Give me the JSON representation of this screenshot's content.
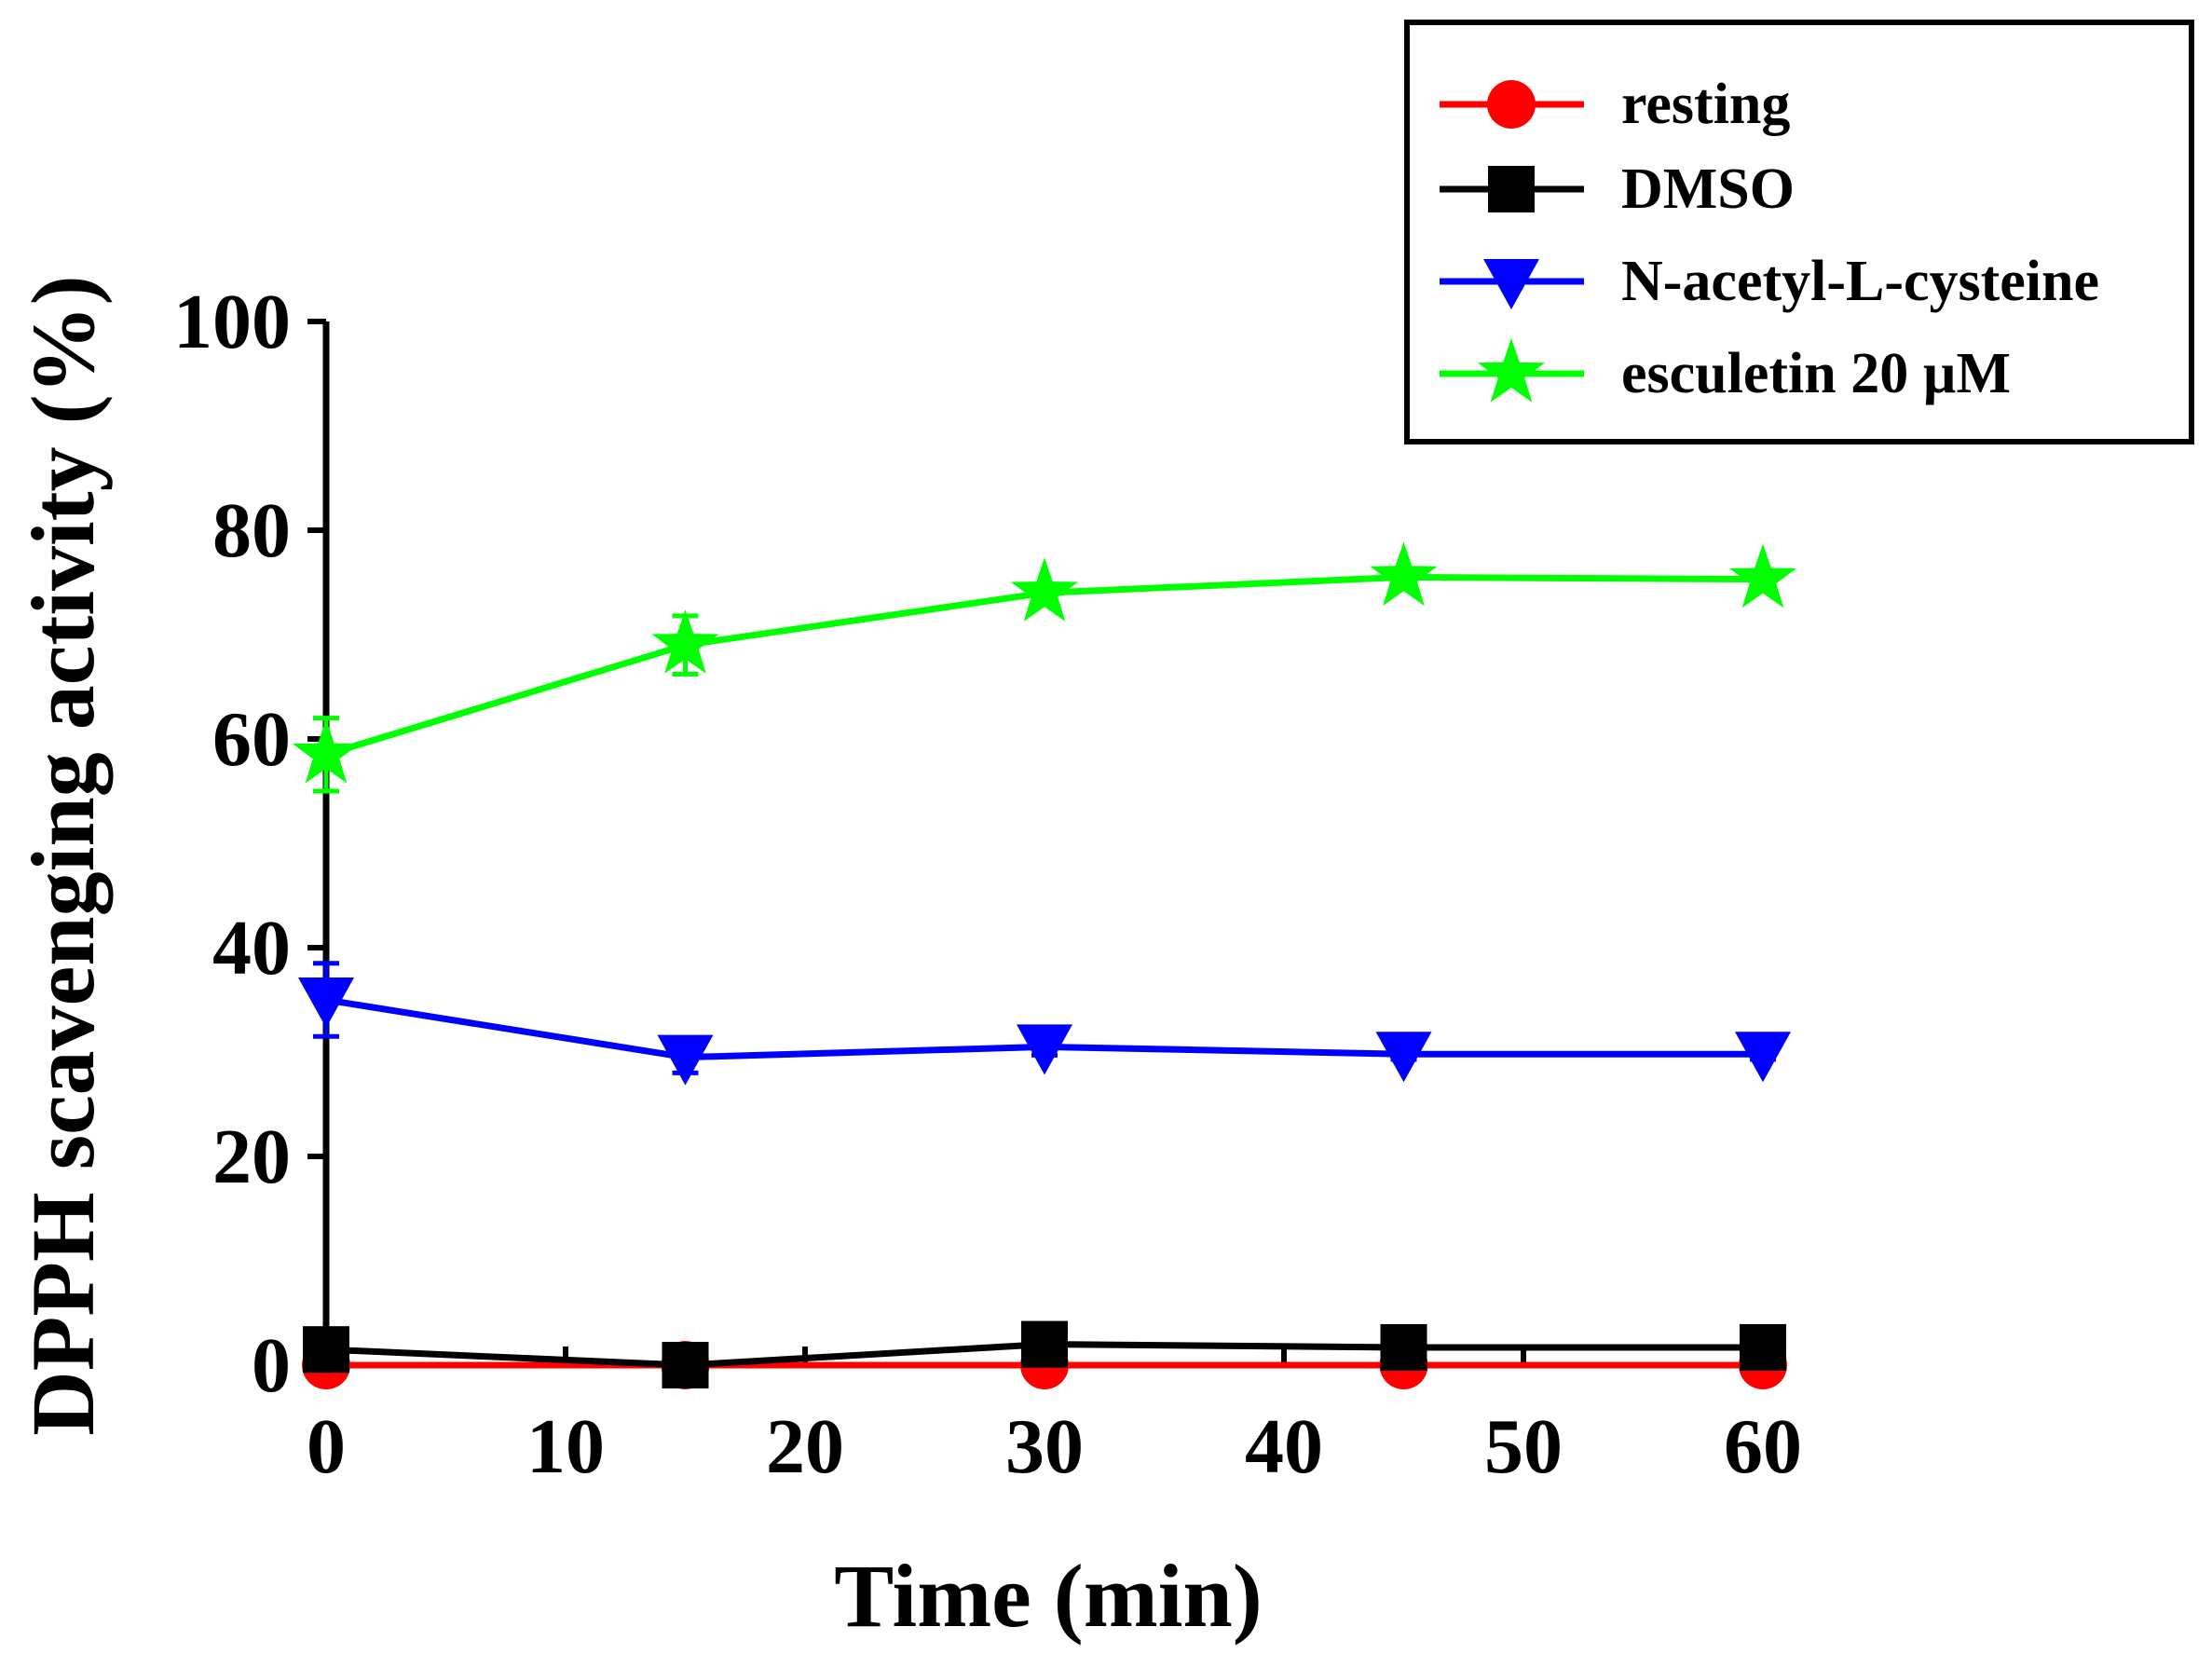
{
  "chart_data": {
    "type": "line",
    "title": "",
    "xlabel": "Time (min)",
    "ylabel": "DPPH scavenging activity (%)",
    "xlim": [
      0,
      60
    ],
    "ylim": [
      0,
      100
    ],
    "xticks": [
      0,
      10,
      20,
      30,
      40,
      50,
      60
    ],
    "yticks": [
      0,
      20,
      40,
      60,
      80,
      100
    ],
    "grid": false,
    "legend_position": "top-right",
    "x": [
      0,
      15,
      30,
      45,
      60
    ],
    "series": [
      {
        "name": "resting",
        "color": "#ff0000",
        "marker": "circle",
        "values": [
          0,
          0,
          0,
          0,
          0
        ],
        "errors": [
          0,
          0,
          0,
          0,
          0
        ]
      },
      {
        "name": "DMSO",
        "color": "#000000",
        "marker": "square",
        "values": [
          1.5,
          0,
          2,
          1.7,
          1.7
        ],
        "errors": [
          0.3,
          0.3,
          0.3,
          0.3,
          0.3
        ]
      },
      {
        "name": "N-acetyl-L-cysteine",
        "color": "#0000ff",
        "marker": "triangle-down",
        "values": [
          35,
          29.5,
          30.5,
          29.8,
          29.8
        ],
        "errors": [
          3.5,
          1.5,
          0.8,
          0.5,
          0.5
        ]
      },
      {
        "name": "esculetin 20 µM",
        "color": "#00ff00",
        "marker": "star",
        "values": [
          58.5,
          69,
          74,
          75.5,
          75.3
        ],
        "errors": [
          3.5,
          2.8,
          0.8,
          0.6,
          0.6
        ]
      }
    ]
  }
}
